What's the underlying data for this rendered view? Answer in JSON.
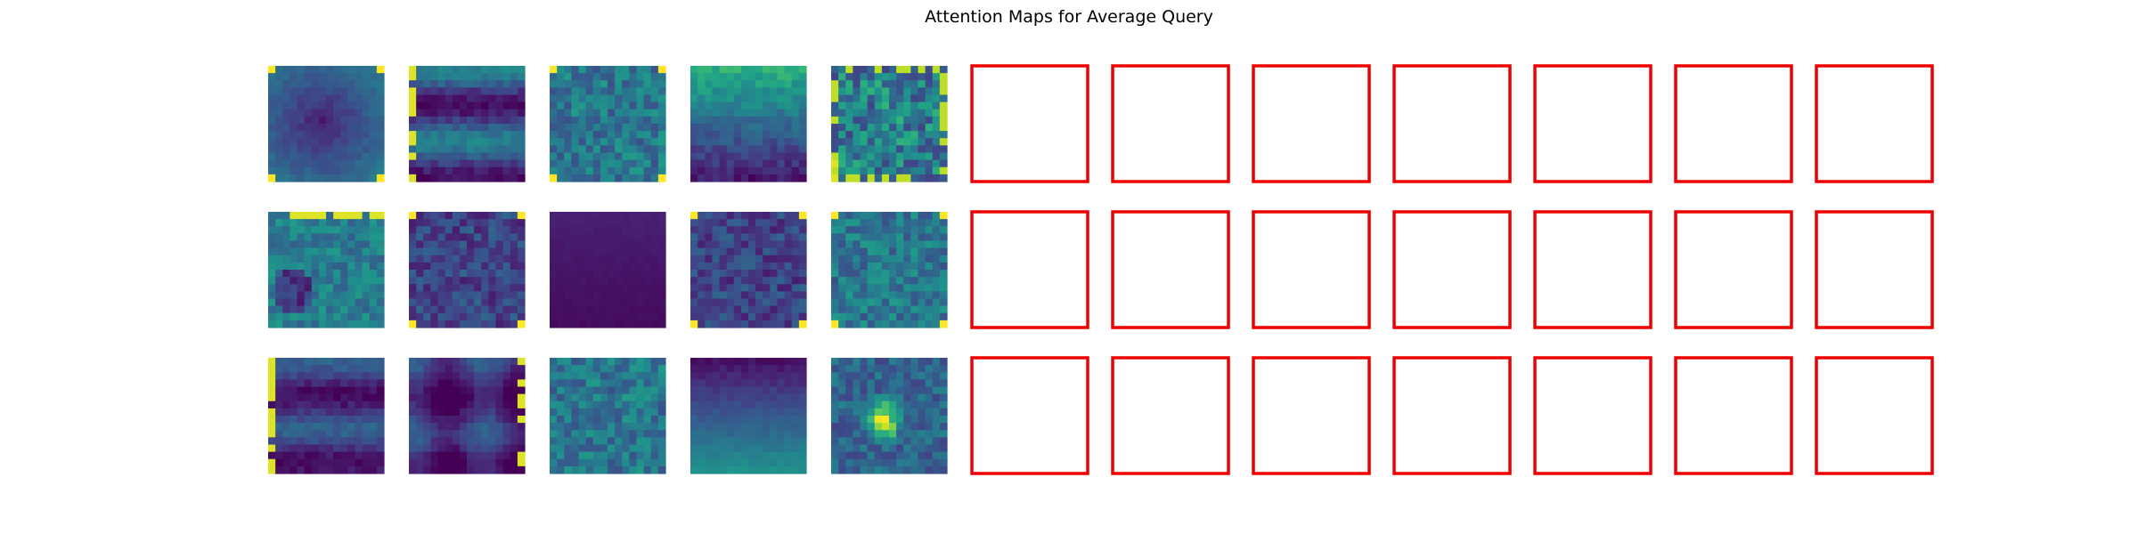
{
  "title": "Attention Maps for Average Query",
  "chart_data": {
    "type": "heatmap",
    "title": "Attention Maps for Average Query",
    "rows": 3,
    "cols": 12,
    "cmap": "viridis",
    "cell_resolution": 16,
    "filled_cols_per_row": 5,
    "empty_panel_color": "#ee0000",
    "heatmaps": [
      [
        {
          "pattern": "center-dark-edges-mid",
          "seed": 11,
          "corner_hot": true
        },
        {
          "pattern": "horizontal-bands",
          "seed": 12,
          "left_edge_hot": true
        },
        {
          "pattern": "noisy-mid",
          "seed": 13,
          "corner_hot": true
        },
        {
          "pattern": "top-bright-bottom-dark",
          "seed": 14
        },
        {
          "pattern": "noisy-bright-edges",
          "seed": 15,
          "left_edge_hot": true
        }
      ],
      [
        {
          "pattern": "blobby-mid",
          "seed": 21,
          "top_edge_hot": true
        },
        {
          "pattern": "noisy-dark",
          "seed": 22,
          "corner_hot": true
        },
        {
          "pattern": "uniform-dark",
          "seed": 23
        },
        {
          "pattern": "noisy-dark",
          "seed": 24,
          "corner_hot": true
        },
        {
          "pattern": "noisy-mid",
          "seed": 25,
          "corner_hot": true
        }
      ],
      [
        {
          "pattern": "horizontal-bands-dark",
          "seed": 31,
          "left_edge_hot": true
        },
        {
          "pattern": "grid-dark",
          "seed": 32,
          "right_edge_hot": true
        },
        {
          "pattern": "noisy-mid",
          "seed": 33
        },
        {
          "pattern": "bottom-bright-top-dark",
          "seed": 34
        },
        {
          "pattern": "center-hotspot",
          "seed": 35
        }
      ]
    ]
  }
}
